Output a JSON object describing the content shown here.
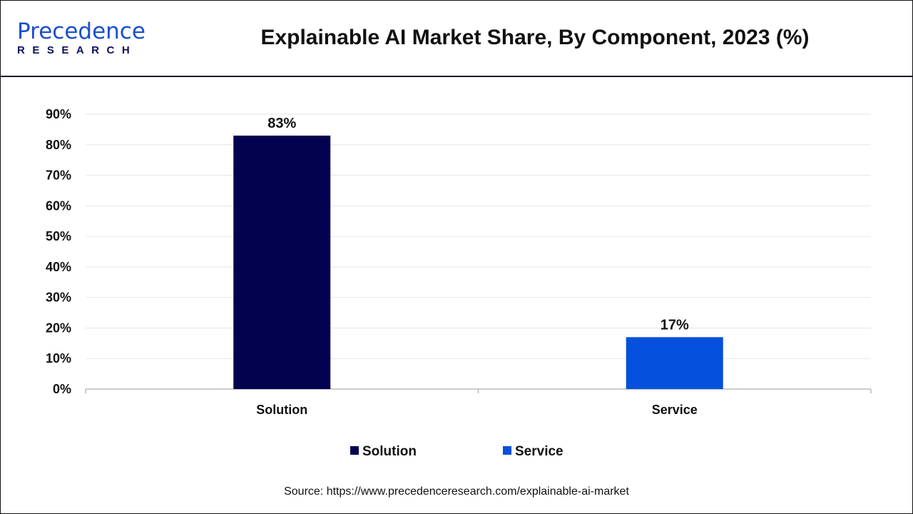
{
  "logo": {
    "top": "Precedence",
    "bottom": "RESEARCH"
  },
  "title": "Explainable AI Market Share, By Component, 2023 (%)",
  "source": "Source: https://www.precedenceresearch.com/explainable-ai-market",
  "chart_data": {
    "type": "bar",
    "title": "Explainable AI Market Share, By Component, 2023 (%)",
    "categories": [
      "Solution",
      "Service"
    ],
    "values": [
      83,
      17
    ],
    "data_labels": [
      "83%",
      "17%"
    ],
    "colors": [
      "#02024f",
      "#0550dc"
    ],
    "ylim": [
      0,
      90
    ],
    "yticks": [
      "0%",
      "10%",
      "20%",
      "30%",
      "40%",
      "50%",
      "60%",
      "70%",
      "80%",
      "90%"
    ],
    "grid": true,
    "legend": {
      "placement": "bottom",
      "entries": [
        "Solution",
        "Service"
      ]
    }
  }
}
